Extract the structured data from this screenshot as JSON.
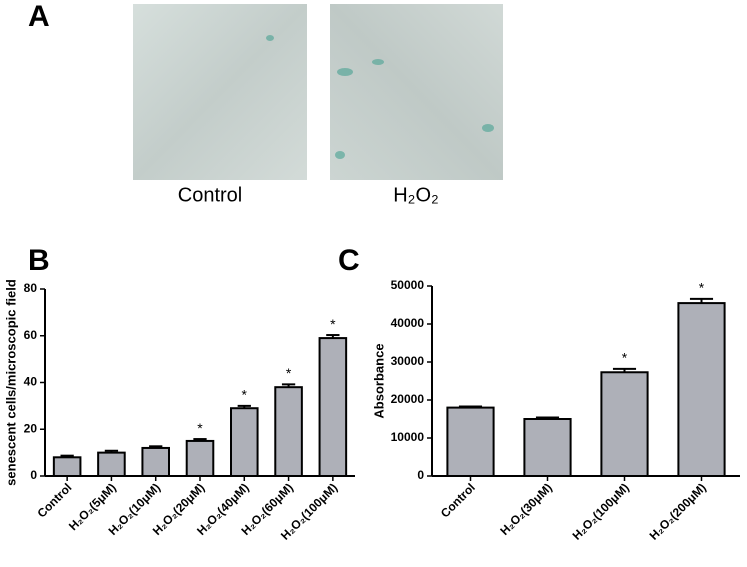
{
  "panel_labels": [
    "A",
    "B",
    "C"
  ],
  "images": [
    {
      "caption": "Control"
    },
    {
      "caption": "H₂O₂"
    }
  ],
  "chart_data": [
    {
      "type": "bar",
      "y_label": "senescent cells/microscopic field",
      "categories": [
        "Control",
        "H₂O₂(5μM)",
        "H₂O₂(10μM)",
        "H₂O₂(20μM)",
        "H₂O₂(40μM)",
        "H₂O₂(60μM)",
        "H₂O₂(100μM)"
      ],
      "values": [
        8,
        10,
        12,
        15,
        29,
        38,
        59
      ],
      "errors": [
        0.7,
        0.8,
        0.7,
        0.8,
        1,
        1.2,
        1.3
      ],
      "significance": [
        null,
        null,
        null,
        "*",
        "*",
        "*",
        "*"
      ],
      "color": "#aeb0b8",
      "ylim": [
        0,
        80
      ],
      "yticks": [
        0,
        20,
        40,
        60,
        80
      ]
    },
    {
      "type": "bar",
      "y_label": "Absorbance",
      "categories": [
        "Control",
        "H₂O₂(30μM)",
        "H₂O₂(100μM)",
        "H₂O₂(200μM)"
      ],
      "values": [
        18000,
        15000,
        27300,
        45500
      ],
      "errors": [
        300,
        400,
        900,
        1100
      ],
      "significance": [
        null,
        null,
        "*",
        "*"
      ],
      "color": "#aeb0b8",
      "ylim": [
        0,
        50000
      ],
      "yticks": [
        0,
        10000,
        20000,
        30000,
        40000,
        50000
      ]
    }
  ]
}
